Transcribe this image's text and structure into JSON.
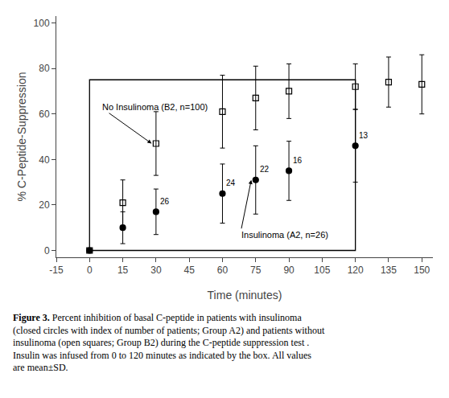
{
  "chart_data": {
    "type": "scatter",
    "xlabel": "Time (minutes)",
    "ylabel": "% C-Peptide-Suppression",
    "xlim": [
      -15,
      155
    ],
    "xticks": [
      -15,
      0,
      15,
      30,
      45,
      60,
      75,
      90,
      105,
      120,
      135,
      150
    ],
    "ylim": [
      -3,
      103
    ],
    "yticks": [
      0,
      20,
      40,
      60,
      80,
      100
    ],
    "grid": false,
    "series": [
      {
        "x": [
          0,
          15,
          30,
          60,
          75,
          90,
          120,
          135,
          150
        ],
        "values": [
          0,
          21,
          47,
          61,
          67,
          70,
          72,
          74,
          73
        ],
        "errors": [
          0,
          10,
          14,
          16,
          14,
          12,
          10,
          11,
          13
        ],
        "color": "black",
        "marker": "square-open"
      },
      {
        "x": [
          0,
          15,
          30,
          60,
          75,
          90,
          120
        ],
        "values": [
          0,
          10,
          17,
          25,
          31,
          35,
          46
        ],
        "errors": [
          0,
          7,
          10,
          13,
          15,
          13,
          16
        ],
        "color": "black",
        "marker": "circle"
      }
    ],
    "box": {
      "x0": 0,
      "x1": 120,
      "y0": 0,
      "y1": 75
    },
    "point_labels": [
      {
        "text": "26",
        "x": 31,
        "y": 19
      },
      {
        "text": "24",
        "x": 61,
        "y": 27
      },
      {
        "text": "22",
        "x": 76,
        "y": 33
      },
      {
        "text": "16",
        "x": 91,
        "y": 37
      },
      {
        "text": "13",
        "x": 121,
        "y": 48
      }
    ],
    "annotations": [
      {
        "text": "No Insulinoma (B2, n=100)",
        "x": 28,
        "y": 47,
        "text_x": 5,
        "text_y": 63
      },
      {
        "text": "Insulinoma (A2, n=26)",
        "x": 73,
        "y": 31,
        "text_x": 68,
        "text_y": 7
      }
    ],
    "caption": {
      "bold": "Figure 3.",
      "text": "Percent inhibition of basal C-peptide in patients with insulinoma (closed circles with index of number of patients; Group A2) and patients without insulinoma (open squares; Group B2) during the C-peptide suppression test . Insulin was infused from 0 to 120 minutes as indicated by the box. All values are mean±SD."
    }
  }
}
